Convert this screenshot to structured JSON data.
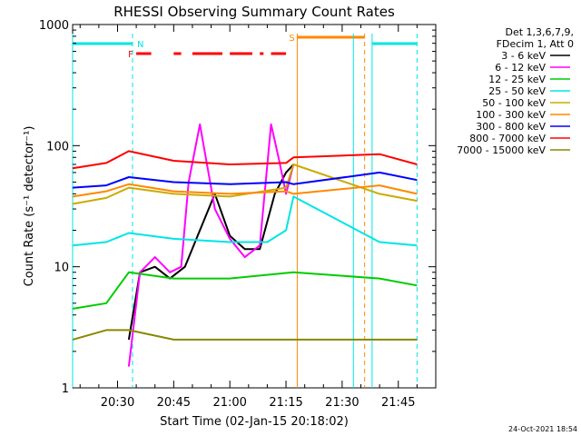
{
  "chart_data": {
    "type": "line",
    "title": "RHESSI Observing Summary Count Rates",
    "xlabel": "Start Time (02-Jan-15 20:18:02)",
    "ylabel": "Count Rate (s⁻¹ detector⁻¹)",
    "yscale": "log",
    "ylim": [
      1,
      1000
    ],
    "xlim": [
      "20:18",
      "21:55"
    ],
    "x_ticks": [
      "20:30",
      "20:45",
      "21:00",
      "21:15",
      "21:30",
      "21:45"
    ],
    "y_ticks": [
      "1",
      "10",
      "100",
      "1000"
    ],
    "legend_header": [
      "Det 1,3,6,7,9,",
      "FDecim 1, Att 0"
    ],
    "legend_position": "right",
    "series": [
      {
        "name": "3 - 6 keV",
        "color": "#000000",
        "x": [
          "20:33",
          "20:36",
          "20:40",
          "20:44",
          "20:48",
          "20:52",
          "20:56",
          "21:00",
          "21:04",
          "21:08",
          "21:12",
          "21:15",
          "21:17",
          "21:40",
          "21:50"
        ],
        "values": [
          2.5,
          9,
          10,
          8,
          10,
          20,
          40,
          18,
          14,
          14,
          40,
          60,
          70,
          null,
          null
        ]
      },
      {
        "name": "6 - 12 keV",
        "color": "#ff00ff",
        "x": [
          "20:33",
          "20:36",
          "20:40",
          "20:44",
          "20:47",
          "20:49",
          "20:52",
          "20:56",
          "21:00",
          "21:04",
          "21:08",
          "21:11",
          "21:13",
          "21:15",
          "21:17"
        ],
        "values": [
          1.5,
          9,
          12,
          9,
          10,
          50,
          150,
          30,
          17,
          12,
          15,
          150,
          80,
          40,
          70
        ]
      },
      {
        "name": "12 - 25 keV",
        "color": "#00cc00",
        "x": [
          "20:18",
          "20:27",
          "20:33",
          "20:45",
          "21:00",
          "21:17",
          "21:40",
          "21:50"
        ],
        "values": [
          4.5,
          5,
          9,
          8,
          8,
          9,
          8,
          7
        ]
      },
      {
        "name": "25 - 50 keV",
        "color": "#00e5e5",
        "x": [
          "20:18",
          "20:27",
          "20:33",
          "20:45",
          "21:00",
          "21:10",
          "21:15",
          "21:17",
          "21:40",
          "21:50"
        ],
        "values": [
          15,
          16,
          19,
          17,
          16,
          16,
          20,
          38,
          16,
          15
        ]
      },
      {
        "name": "50 - 100 keV",
        "color": "#ccaa00",
        "x": [
          "20:18",
          "20:27",
          "20:33",
          "20:45",
          "21:00",
          "21:15",
          "21:17",
          "21:40",
          "21:50"
        ],
        "values": [
          33,
          37,
          45,
          40,
          38,
          45,
          70,
          40,
          35
        ]
      },
      {
        "name": "100 - 300 keV",
        "color": "#ff8800",
        "x": [
          "20:18",
          "20:27",
          "20:33",
          "20:45",
          "21:00",
          "21:15",
          "21:17",
          "21:40",
          "21:50"
        ],
        "values": [
          38,
          42,
          48,
          42,
          40,
          42,
          40,
          47,
          40
        ]
      },
      {
        "name": "300 - 800 keV",
        "color": "#0000ff",
        "x": [
          "20:18",
          "20:27",
          "20:33",
          "20:45",
          "21:00",
          "21:15",
          "21:17",
          "21:40",
          "21:50"
        ],
        "values": [
          45,
          47,
          55,
          50,
          48,
          50,
          48,
          60,
          52
        ]
      },
      {
        "name": "800 - 7000 keV",
        "color": "#ff0000",
        "x": [
          "20:18",
          "20:27",
          "20:33",
          "20:45",
          "21:00",
          "21:15",
          "21:17",
          "21:40",
          "21:50"
        ],
        "values": [
          65,
          72,
          90,
          75,
          70,
          72,
          80,
          85,
          70
        ]
      },
      {
        "name": "7000 - 15000 keV",
        "color": "#888800",
        "x": [
          "20:18",
          "20:27",
          "20:33",
          "20:45",
          "21:00",
          "21:17",
          "21:40",
          "21:50"
        ],
        "values": [
          2.5,
          3,
          3,
          2.5,
          2.5,
          2.5,
          2.5,
          2.5
        ]
      }
    ],
    "flags": [
      {
        "label": "N",
        "color": "#00e5e5",
        "segments": [
          [
            "20:18",
            "20:34"
          ],
          [
            "21:38",
            "21:50"
          ]
        ]
      },
      {
        "label": "F",
        "color": "#ff0000",
        "segments": [
          [
            "20:35",
            "20:39"
          ],
          [
            "20:45",
            "20:47"
          ],
          [
            "20:50",
            "20:58"
          ],
          [
            "21:00",
            "21:06"
          ],
          [
            "21:08",
            "21:09"
          ],
          [
            "21:11",
            "21:15"
          ]
        ]
      },
      {
        "label": "S",
        "color": "#ff8800",
        "segments": [
          [
            "21:18",
            "21:36"
          ]
        ]
      }
    ],
    "vlines": [
      {
        "x": "20:18",
        "color": "#00e5e5",
        "style": "solid"
      },
      {
        "x": "20:34",
        "color": "#00e5e5",
        "style": "dashed"
      },
      {
        "x": "21:18",
        "color": "#ff8800",
        "style": "solid"
      },
      {
        "x": "21:33",
        "color": "#00e5e5",
        "style": "solid"
      },
      {
        "x": "21:36",
        "color": "#ff8800",
        "style": "dashed"
      },
      {
        "x": "21:38",
        "color": "#00e5e5",
        "style": "solid"
      },
      {
        "x": "21:50",
        "color": "#00e5e5",
        "style": "dashed"
      }
    ],
    "footer": "24-Oct-2021 18:54"
  }
}
